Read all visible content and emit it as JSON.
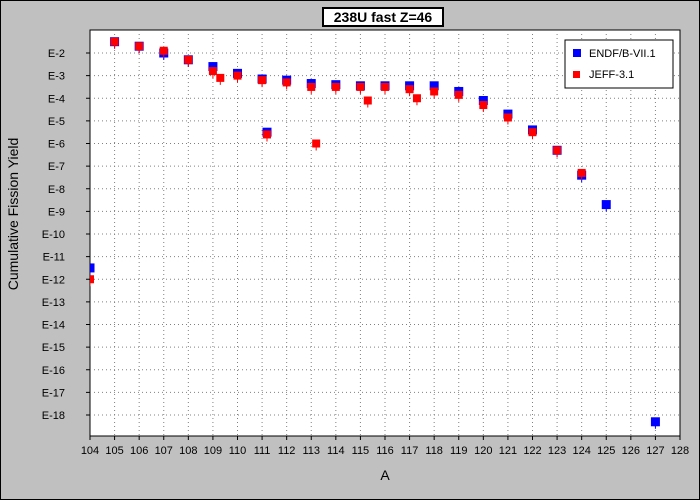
{
  "chart_data": {
    "type": "scatter",
    "title": "238U fast Z=46",
    "xlabel": "A",
    "ylabel": "Cumulative Fission Yield",
    "y_scale": "log10",
    "xlim": [
      104,
      128
    ],
    "ylim": [
      -19,
      -1.5
    ],
    "x_ticks": [
      104,
      105,
      106,
      107,
      108,
      109,
      110,
      111,
      112,
      113,
      114,
      115,
      116,
      117,
      118,
      119,
      120,
      121,
      122,
      123,
      124,
      125,
      126,
      127,
      128
    ],
    "y_ticks": [
      -2,
      -3,
      -4,
      -5,
      -6,
      -7,
      -8,
      -9,
      -10,
      -11,
      -12,
      -13,
      -14,
      -15,
      -16,
      -17,
      -18
    ],
    "y_tick_labels": [
      "E-2",
      "E-3",
      "E-4",
      "E-5",
      "E-6",
      "E-7",
      "E-8",
      "E-9",
      "E-10",
      "E-11",
      "E-12",
      "E-13",
      "E-14",
      "E-15",
      "E-16",
      "E-17",
      "E-18"
    ],
    "grid": true,
    "legend_position": "top-right",
    "series": [
      {
        "name": "ENDF/B-VII.1",
        "color": "#0000ff",
        "marker": "square",
        "points": [
          {
            "x": 104,
            "y": -11.5
          },
          {
            "x": 105,
            "y": -1.5
          },
          {
            "x": 106,
            "y": -1.7
          },
          {
            "x": 107,
            "y": -2.0
          },
          {
            "x": 108,
            "y": -2.3
          },
          {
            "x": 109,
            "y": -2.6
          },
          {
            "x": 110,
            "y": -2.9
          },
          {
            "x": 111,
            "y": -3.15
          },
          {
            "x": 111.2,
            "y": -5.5
          },
          {
            "x": 112,
            "y": -3.2
          },
          {
            "x": 113,
            "y": -3.35
          },
          {
            "x": 114,
            "y": -3.4
          },
          {
            "x": 115,
            "y": -3.45
          },
          {
            "x": 116,
            "y": -3.45
          },
          {
            "x": 117,
            "y": -3.45
          },
          {
            "x": 118,
            "y": -3.45
          },
          {
            "x": 119,
            "y": -3.7
          },
          {
            "x": 120,
            "y": -4.1
          },
          {
            "x": 121,
            "y": -4.7
          },
          {
            "x": 122,
            "y": -5.4
          },
          {
            "x": 123,
            "y": -6.3
          },
          {
            "x": 124,
            "y": -7.4
          },
          {
            "x": 125,
            "y": -8.7
          },
          {
            "x": 127,
            "y": -18.3
          }
        ]
      },
      {
        "name": "JEFF-3.1",
        "color": "#ff0000",
        "marker": "square",
        "points": [
          {
            "x": 104,
            "y": -12.0
          },
          {
            "x": 105,
            "y": -1.5
          },
          {
            "x": 106,
            "y": -1.7
          },
          {
            "x": 107,
            "y": -1.9
          },
          {
            "x": 108,
            "y": -2.3
          },
          {
            "x": 109,
            "y": -2.8
          },
          {
            "x": 109.3,
            "y": -3.1
          },
          {
            "x": 110,
            "y": -3.0
          },
          {
            "x": 111,
            "y": -3.2
          },
          {
            "x": 111.2,
            "y": -5.6
          },
          {
            "x": 112,
            "y": -3.3
          },
          {
            "x": 113,
            "y": -3.5
          },
          {
            "x": 113.2,
            "y": -6.0
          },
          {
            "x": 114,
            "y": -3.5
          },
          {
            "x": 115,
            "y": -3.5
          },
          {
            "x": 115.3,
            "y": -4.1
          },
          {
            "x": 116,
            "y": -3.5
          },
          {
            "x": 117,
            "y": -3.6
          },
          {
            "x": 117.3,
            "y": -4.0
          },
          {
            "x": 118,
            "y": -3.7
          },
          {
            "x": 119,
            "y": -3.85
          },
          {
            "x": 120,
            "y": -4.3
          },
          {
            "x": 121,
            "y": -4.85
          },
          {
            "x": 122,
            "y": -5.5
          },
          {
            "x": 123,
            "y": -6.3
          },
          {
            "x": 124,
            "y": -7.3
          }
        ]
      }
    ]
  }
}
